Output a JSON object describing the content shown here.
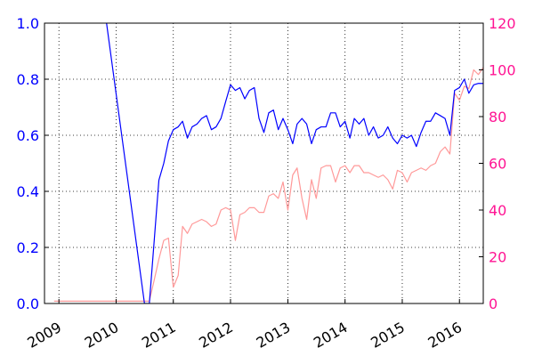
{
  "chart_data": {
    "type": "line",
    "title": "",
    "xlabel": "",
    "ylabel_left": "",
    "ylabel_right": "",
    "grid": true,
    "grid_style": "dotted",
    "legend": "none",
    "x_type": "date",
    "xlim": [
      "2008-10-01",
      "2016-06-01"
    ],
    "x_ticks": [
      {
        "date": "2009-01-01",
        "label": "2009"
      },
      {
        "date": "2010-01-01",
        "label": "2010"
      },
      {
        "date": "2011-01-01",
        "label": "2011"
      },
      {
        "date": "2012-01-01",
        "label": "2012"
      },
      {
        "date": "2013-01-01",
        "label": "2013"
      },
      {
        "date": "2014-01-01",
        "label": "2014"
      },
      {
        "date": "2015-01-01",
        "label": "2015"
      },
      {
        "date": "2016-01-01",
        "label": "2016"
      }
    ],
    "y_left": {
      "lim": [
        0,
        1.0
      ],
      "ticks": [
        "0.0",
        "0.2",
        "0.4",
        "0.6",
        "0.8",
        "1.0"
      ],
      "color": "#0000ff"
    },
    "y_right": {
      "lim": [
        0,
        120
      ],
      "ticks": [
        "0",
        "20",
        "40",
        "60",
        "80",
        "100",
        "120"
      ],
      "color": "#ff1493"
    },
    "series": [
      {
        "axis": "left",
        "color": "#0000ff",
        "points": [
          [
            "2009-11-01",
            1.0
          ],
          [
            "2010-07-01",
            0.0
          ],
          [
            "2010-08-01",
            0.0
          ],
          [
            "2010-10-01",
            0.44
          ],
          [
            "2010-11-01",
            0.5
          ],
          [
            "2010-12-01",
            0.58
          ],
          [
            "2011-01-01",
            0.62
          ],
          [
            "2011-02-01",
            0.63
          ],
          [
            "2011-03-01",
            0.65
          ],
          [
            "2011-04-01",
            0.59
          ],
          [
            "2011-05-01",
            0.63
          ],
          [
            "2011-06-01",
            0.64
          ],
          [
            "2011-07-01",
            0.66
          ],
          [
            "2011-08-01",
            0.67
          ],
          [
            "2011-09-01",
            0.62
          ],
          [
            "2011-10-01",
            0.63
          ],
          [
            "2011-11-01",
            0.66
          ],
          [
            "2011-12-01",
            0.72
          ],
          [
            "2012-01-01",
            0.78
          ],
          [
            "2012-02-01",
            0.76
          ],
          [
            "2012-03-01",
            0.77
          ],
          [
            "2012-04-01",
            0.73
          ],
          [
            "2012-05-01",
            0.76
          ],
          [
            "2012-06-01",
            0.77
          ],
          [
            "2012-07-01",
            0.66
          ],
          [
            "2012-08-01",
            0.61
          ],
          [
            "2012-09-01",
            0.68
          ],
          [
            "2012-10-01",
            0.69
          ],
          [
            "2012-11-01",
            0.62
          ],
          [
            "2012-12-01",
            0.66
          ],
          [
            "2013-01-01",
            0.62
          ],
          [
            "2013-02-01",
            0.57
          ],
          [
            "2013-03-01",
            0.64
          ],
          [
            "2013-04-01",
            0.66
          ],
          [
            "2013-05-01",
            0.64
          ],
          [
            "2013-06-01",
            0.57
          ],
          [
            "2013-07-01",
            0.62
          ],
          [
            "2013-08-01",
            0.63
          ],
          [
            "2013-09-01",
            0.63
          ],
          [
            "2013-10-01",
            0.68
          ],
          [
            "2013-11-01",
            0.68
          ],
          [
            "2013-12-01",
            0.63
          ],
          [
            "2014-01-01",
            0.65
          ],
          [
            "2014-02-01",
            0.59
          ],
          [
            "2014-03-01",
            0.66
          ],
          [
            "2014-04-01",
            0.64
          ],
          [
            "2014-05-01",
            0.66
          ],
          [
            "2014-06-01",
            0.6
          ],
          [
            "2014-07-01",
            0.63
          ],
          [
            "2014-08-01",
            0.59
          ],
          [
            "2014-09-01",
            0.6
          ],
          [
            "2014-10-01",
            0.63
          ],
          [
            "2014-11-01",
            0.59
          ],
          [
            "2014-12-01",
            0.57
          ],
          [
            "2015-01-01",
            0.6
          ],
          [
            "2015-02-01",
            0.59
          ],
          [
            "2015-03-01",
            0.6
          ],
          [
            "2015-04-01",
            0.56
          ],
          [
            "2015-05-01",
            0.61
          ],
          [
            "2015-06-01",
            0.65
          ],
          [
            "2015-07-01",
            0.65
          ],
          [
            "2015-08-01",
            0.68
          ],
          [
            "2015-09-01",
            0.67
          ],
          [
            "2015-10-01",
            0.66
          ],
          [
            "2015-11-01",
            0.6
          ],
          [
            "2015-12-01",
            0.76
          ],
          [
            "2016-01-01",
            0.77
          ],
          [
            "2016-02-01",
            0.8
          ],
          [
            "2016-03-01",
            0.75
          ],
          [
            "2016-04-01",
            0.78
          ],
          [
            "2016-05-01",
            0.785
          ],
          [
            "2016-06-01",
            0.785
          ]
        ]
      },
      {
        "axis": "right",
        "color": "#ff9999",
        "points": [
          [
            "2008-12-01",
            1
          ],
          [
            "2010-08-01",
            1
          ],
          [
            "2010-09-01",
            10
          ],
          [
            "2010-10-01",
            19
          ],
          [
            "2010-11-01",
            27
          ],
          [
            "2010-12-01",
            28
          ],
          [
            "2011-01-01",
            7
          ],
          [
            "2011-02-01",
            12
          ],
          [
            "2011-03-01",
            33
          ],
          [
            "2011-04-01",
            30
          ],
          [
            "2011-05-01",
            34
          ],
          [
            "2011-06-01",
            35
          ],
          [
            "2011-07-01",
            36
          ],
          [
            "2011-08-01",
            35
          ],
          [
            "2011-09-01",
            33
          ],
          [
            "2011-10-01",
            34
          ],
          [
            "2011-11-01",
            40
          ],
          [
            "2011-12-01",
            41
          ],
          [
            "2012-01-01",
            40
          ],
          [
            "2012-02-01",
            27
          ],
          [
            "2012-03-01",
            38
          ],
          [
            "2012-04-01",
            39
          ],
          [
            "2012-05-01",
            41
          ],
          [
            "2012-06-01",
            41
          ],
          [
            "2012-07-01",
            39
          ],
          [
            "2012-08-01",
            39
          ],
          [
            "2012-09-01",
            46
          ],
          [
            "2012-10-01",
            47
          ],
          [
            "2012-11-01",
            45
          ],
          [
            "2012-12-01",
            52
          ],
          [
            "2013-01-01",
            40
          ],
          [
            "2013-02-01",
            55
          ],
          [
            "2013-03-01",
            58
          ],
          [
            "2013-04-01",
            45
          ],
          [
            "2013-05-01",
            36
          ],
          [
            "2013-06-01",
            53
          ],
          [
            "2013-07-01",
            45
          ],
          [
            "2013-08-01",
            58
          ],
          [
            "2013-09-01",
            59
          ],
          [
            "2013-10-01",
            59
          ],
          [
            "2013-11-01",
            52
          ],
          [
            "2013-12-01",
            58
          ],
          [
            "2014-01-01",
            59
          ],
          [
            "2014-02-01",
            56
          ],
          [
            "2014-03-01",
            59
          ],
          [
            "2014-04-01",
            59
          ],
          [
            "2014-05-01",
            56
          ],
          [
            "2014-06-01",
            56
          ],
          [
            "2014-07-01",
            55
          ],
          [
            "2014-08-01",
            54
          ],
          [
            "2014-09-01",
            55
          ],
          [
            "2014-10-01",
            53
          ],
          [
            "2014-11-01",
            49
          ],
          [
            "2014-12-01",
            57
          ],
          [
            "2015-01-01",
            56
          ],
          [
            "2015-02-01",
            52
          ],
          [
            "2015-03-01",
            56
          ],
          [
            "2015-04-01",
            57
          ],
          [
            "2015-05-01",
            58
          ],
          [
            "2015-06-01",
            57
          ],
          [
            "2015-07-01",
            59
          ],
          [
            "2015-08-01",
            60
          ],
          [
            "2015-09-01",
            65
          ],
          [
            "2015-10-01",
            67
          ],
          [
            "2015-11-01",
            64
          ],
          [
            "2015-12-01",
            90
          ],
          [
            "2016-01-01",
            87
          ],
          [
            "2016-02-01",
            93
          ],
          [
            "2016-03-01",
            92
          ],
          [
            "2016-04-01",
            100
          ],
          [
            "2016-05-01",
            98
          ],
          [
            "2016-06-01",
            101
          ]
        ]
      }
    ]
  }
}
